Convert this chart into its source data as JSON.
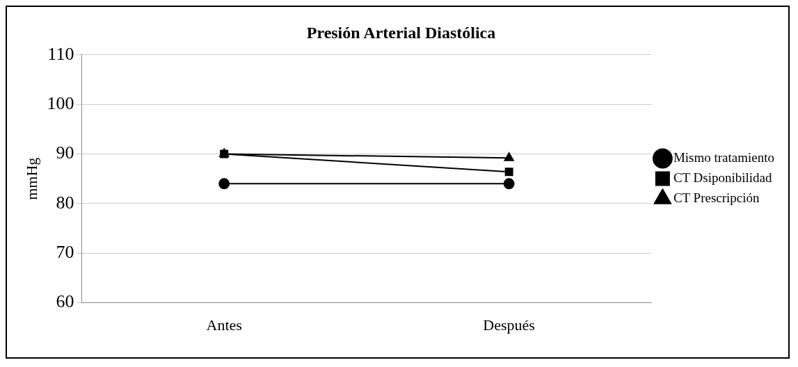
{
  "chart_data": {
    "type": "line",
    "title": "Presión Arterial Diastólica",
    "ylabel": "mmHg",
    "categories": [
      "Antes",
      "Después"
    ],
    "series": [
      {
        "name": "Mismo tratamiento",
        "color": "#000000",
        "marker": "circle",
        "values": [
          84,
          84
        ]
      },
      {
        "name": "CT Dsiponibilidad",
        "color": "#000000",
        "marker": "square",
        "values": [
          90,
          86.4
        ]
      },
      {
        "name": "CT Prescripción",
        "color": "#000000",
        "marker": "triangle",
        "values": [
          90,
          89.2
        ]
      }
    ],
    "ylim": [
      60,
      110
    ],
    "yticks": [
      60,
      70,
      80,
      90,
      100,
      110
    ],
    "grid": "y",
    "legend": "right",
    "line_style": "solid"
  }
}
